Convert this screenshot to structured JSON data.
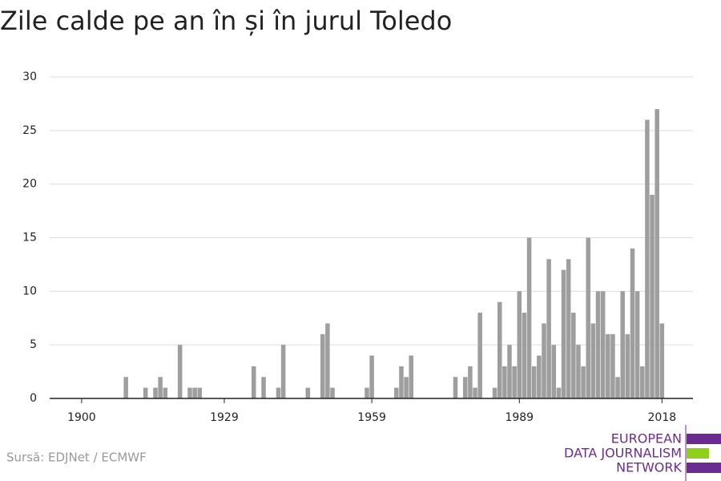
{
  "chart_data": {
    "type": "bar",
    "title": "Zile calde pe an în și în jurul Toledo",
    "x": [
      1900,
      1901,
      1902,
      1903,
      1904,
      1905,
      1906,
      1907,
      1908,
      1909,
      1910,
      1911,
      1912,
      1913,
      1914,
      1915,
      1916,
      1917,
      1918,
      1919,
      1920,
      1921,
      1922,
      1923,
      1924,
      1925,
      1926,
      1927,
      1928,
      1929,
      1930,
      1931,
      1932,
      1933,
      1934,
      1935,
      1936,
      1937,
      1938,
      1939,
      1940,
      1941,
      1942,
      1943,
      1944,
      1945,
      1946,
      1947,
      1948,
      1949,
      1950,
      1951,
      1952,
      1953,
      1954,
      1955,
      1956,
      1957,
      1958,
      1959,
      1960,
      1961,
      1962,
      1963,
      1964,
      1965,
      1966,
      1967,
      1968,
      1969,
      1970,
      1971,
      1972,
      1973,
      1974,
      1975,
      1976,
      1977,
      1978,
      1979,
      1980,
      1981,
      1982,
      1983,
      1984,
      1985,
      1986,
      1987,
      1988,
      1989,
      1990,
      1991,
      1992,
      1993,
      1994,
      1995,
      1996,
      1997,
      1998,
      1999,
      2000,
      2001,
      2002,
      2003,
      2004,
      2005,
      2006,
      2007,
      2008,
      2009,
      2010,
      2011,
      2012,
      2013,
      2014,
      2015,
      2016,
      2017,
      2018
    ],
    "values": [
      0,
      0,
      0,
      0,
      0,
      0,
      0,
      0,
      0,
      2,
      0,
      0,
      0,
      1,
      0,
      1,
      2,
      1,
      0,
      0,
      5,
      0,
      1,
      1,
      1,
      0,
      0,
      0,
      0,
      0,
      0,
      0,
      0,
      0,
      0,
      3,
      0,
      2,
      0,
      0,
      1,
      5,
      0,
      0,
      0,
      0,
      1,
      0,
      0,
      6,
      7,
      1,
      0,
      0,
      0,
      0,
      0,
      0,
      1,
      4,
      0,
      0,
      0,
      0,
      1,
      3,
      2,
      4,
      0,
      0,
      0,
      0,
      0,
      0,
      0,
      0,
      2,
      0,
      2,
      3,
      1,
      8,
      0,
      0,
      1,
      9,
      3,
      5,
      3,
      10,
      8,
      15,
      3,
      4,
      7,
      13,
      5,
      1,
      12,
      13,
      8,
      5,
      3,
      15,
      7,
      10,
      10,
      6,
      6,
      2,
      10,
      6,
      14,
      10,
      3,
      26,
      19,
      27,
      7
    ],
    "color": "#9e9e9e",
    "xlim": [
      1893.5,
      2024.3
    ],
    "xticks": [
      1900,
      1929,
      1959,
      1989,
      2018
    ],
    "ylim": [
      0,
      30
    ],
    "yticks": [
      0,
      5,
      10,
      15,
      20,
      25,
      30
    ],
    "grid": true,
    "source": "Sursă: EDJNet / ECMWF",
    "logo": [
      "EUROPEAN",
      "DATA JOURNALISM",
      "NETWORK"
    ]
  }
}
